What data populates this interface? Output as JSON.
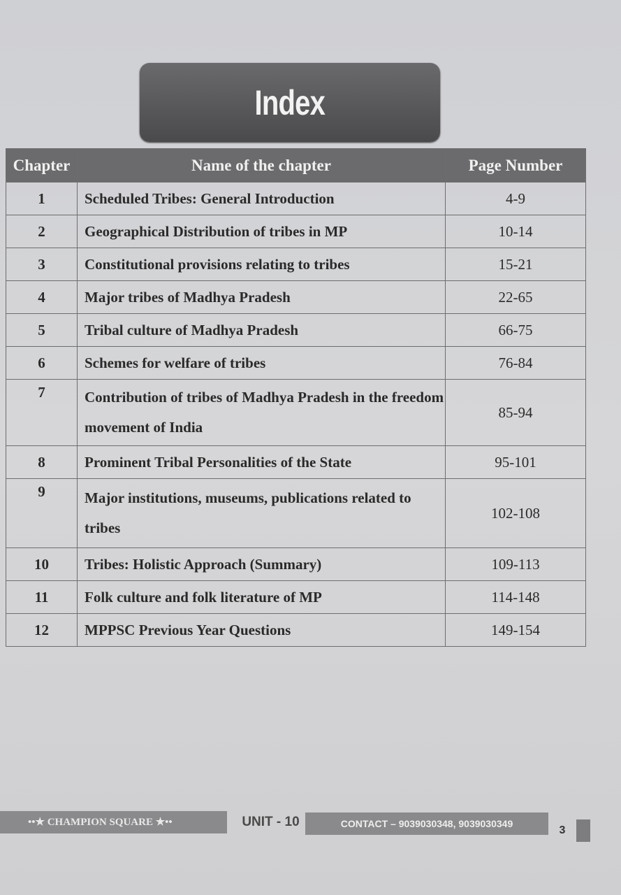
{
  "title": "Index",
  "table": {
    "headers": [
      "Chapter",
      "Name of the chapter",
      "Page Number"
    ],
    "rows": [
      {
        "chapter": "1",
        "name": "Scheduled Tribes: General Introduction",
        "pages": "4-9"
      },
      {
        "chapter": "2",
        "name": "Geographical Distribution of tribes in MP",
        "pages": "10-14"
      },
      {
        "chapter": "3",
        "name": "Constitutional provisions relating to tribes",
        "pages": "15-21"
      },
      {
        "chapter": "4",
        "name": "Major tribes of Madhya Pradesh",
        "pages": "22-65"
      },
      {
        "chapter": "5",
        "name": "Tribal culture of Madhya Pradesh",
        "pages": "66-75"
      },
      {
        "chapter": "6",
        "name": "Schemes for welfare of tribes",
        "pages": "76-84"
      },
      {
        "chapter": "7",
        "name": "Contribution of tribes of Madhya Pradesh in the freedom movement of India",
        "pages": "85-94"
      },
      {
        "chapter": "8",
        "name": "Prominent Tribal Personalities of the State",
        "pages": "95-101"
      },
      {
        "chapter": "9",
        "name": "Major institutions, museums, publications related to tribes",
        "pages": "102-108"
      },
      {
        "chapter": "10",
        "name": "Tribes: Holistic Approach (Summary)",
        "pages": "109-113"
      },
      {
        "chapter": "11",
        "name": "Folk culture and folk literature of MP",
        "pages": "114-148"
      },
      {
        "chapter": "12",
        "name": "MPPSC Previous Year Questions",
        "pages": "149-154"
      }
    ]
  },
  "footer": {
    "brand": "••★ CHAMPION SQUARE ★••",
    "unit": "UNIT - 10",
    "contact": "CONTACT – 9039030348, 9039030349",
    "page_number": "3"
  }
}
